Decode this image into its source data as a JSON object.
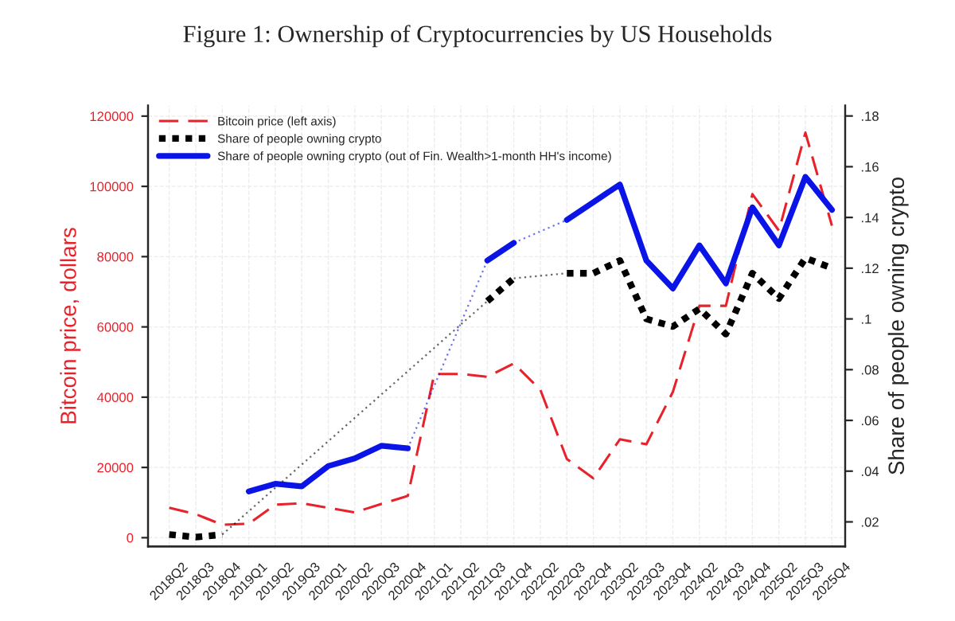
{
  "chart_data": {
    "type": "line",
    "title": "Figure 1: Ownership of Cryptocurrencies by US Households",
    "ylabel": "Bitcoin price, dollars",
    "y2label": "Share of people owning crypto",
    "categories": [
      "2018Q2",
      "2018Q3",
      "2018Q4",
      "2019Q1",
      "2019Q2",
      "2019Q3",
      "2020Q1",
      "2020Q2",
      "2020Q3",
      "2020Q4",
      "2021Q1",
      "2021Q2",
      "2021Q3",
      "2021Q4",
      "2022Q2",
      "2022Q3",
      "2022Q4",
      "2023Q2",
      "2023Q3",
      "2023Q4",
      "2024Q2",
      "2024Q3",
      "2024Q4",
      "2025Q2",
      "2025Q3",
      "2025Q4"
    ],
    "series": [
      {
        "name": "Bitcoin price (left axis)",
        "color": "#e8222b",
        "line_style": "dashed",
        "values": [
          8500,
          6700,
          3700,
          4000,
          9400,
          9800,
          8500,
          7200,
          9600,
          11900,
          46600,
          46600,
          45800,
          49600,
          42100,
          22400,
          16900,
          28000,
          26600,
          41500,
          66000,
          66000,
          97800,
          87400,
          115300,
          88800
        ]
      },
      {
        "name": "Share of people owning crypto",
        "color": "#000000",
        "line_style": "dotted",
        "axis": "y2",
        "values": [
          0.015,
          0.014,
          0.015,
          null,
          null,
          null,
          null,
          null,
          null,
          null,
          null,
          null,
          0.107,
          0.116,
          null,
          0.118,
          0.118,
          0.123,
          0.1,
          0.097,
          0.104,
          0.094,
          0.118,
          0.108,
          0.124,
          0.12
        ]
      },
      {
        "name": "Share of people owning crypto (out of Fin. Wealth>1-month HH's income)",
        "color": "#0a14e6",
        "line_style": "solid",
        "axis": "y2",
        "values": [
          null,
          null,
          null,
          0.032,
          0.035,
          0.034,
          0.042,
          0.045,
          0.05,
          0.049,
          null,
          null,
          0.123,
          0.13,
          null,
          0.139,
          0.146,
          0.153,
          0.123,
          0.112,
          0.129,
          0.114,
          0.144,
          0.129,
          0.156,
          0.143
        ]
      }
    ],
    "ylim": [
      -2500,
      123000
    ],
    "yticks": [
      0,
      20000,
      40000,
      60000,
      80000,
      100000,
      120000
    ],
    "y2lim": [
      0.0103,
      0.1841
    ],
    "y2ticks": [
      {
        "value": 0.02,
        "label": ".02"
      },
      {
        "value": 0.04,
        "label": ".04"
      },
      {
        "value": 0.06,
        "label": ".06"
      },
      {
        "value": 0.08,
        "label": ".08"
      },
      {
        "value": 0.1,
        "label": ".1"
      },
      {
        "value": 0.12,
        "label": ".12"
      },
      {
        "value": 0.14,
        "label": ".14"
      },
      {
        "value": 0.16,
        "label": ".16"
      },
      {
        "value": 0.18,
        "label": ".18"
      }
    ],
    "grid": true,
    "legend": "top left"
  }
}
